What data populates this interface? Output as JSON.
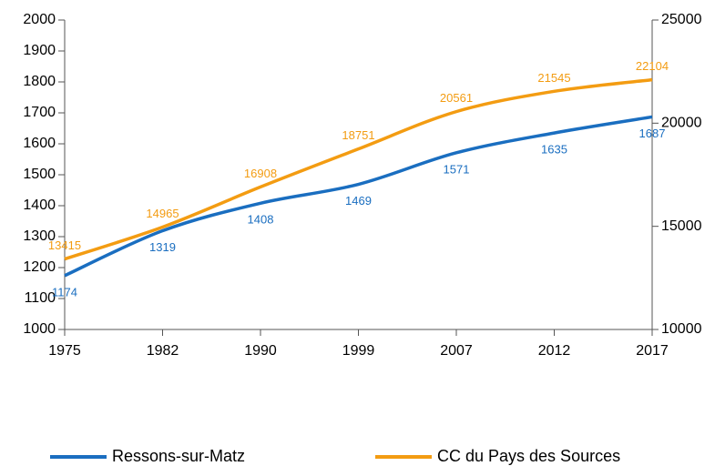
{
  "chart_data": {
    "type": "line",
    "categories": [
      "1975",
      "1982",
      "1990",
      "1999",
      "2007",
      "2012",
      "2017"
    ],
    "series": [
      {
        "name": "Ressons-sur-Matz",
        "color": "#1a6ec0",
        "values": [
          1174,
          1319,
          1408,
          1469,
          1571,
          1635,
          1687
        ]
      },
      {
        "name": "CC du Pays des Sources",
        "color": "#f39c12",
        "axis": "y2",
        "values": [
          13415,
          14965,
          16908,
          18751,
          20561,
          21545,
          22104
        ]
      }
    ],
    "ylim": [
      1000,
      2000
    ],
    "yticks": [
      1000,
      1100,
      1200,
      1300,
      1400,
      1500,
      1600,
      1700,
      1800,
      1900,
      2000
    ],
    "y2lim": [
      10000,
      25000
    ],
    "y2ticks": [
      10000,
      15000,
      20000,
      25000
    ],
    "grid": false
  }
}
